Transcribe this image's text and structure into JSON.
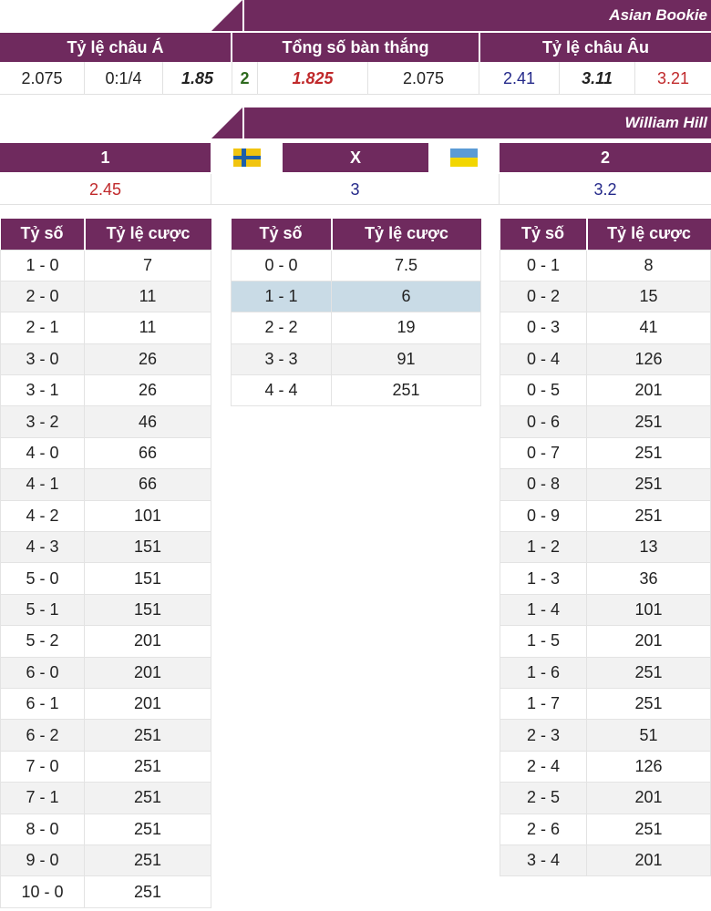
{
  "asian_bookie": {
    "name": "Asian Bookie",
    "headers": [
      "Tỷ lệ châu Á",
      "Tổng số bàn thắng",
      "Tỷ lệ châu Âu"
    ],
    "values": {
      "asia_home": "2.075",
      "asia_handicap": "0:1/4",
      "asia_away": "1.85",
      "total_line": "2",
      "total_over": "1.825",
      "total_under": "2.075",
      "eu_home": "2.41",
      "eu_draw": "3.11",
      "eu_away": "3.21"
    }
  },
  "william_hill": {
    "name": "William Hill",
    "header_home": "1",
    "header_draw": "X",
    "header_away": "2",
    "home_flag": "sweden-flag-icon",
    "away_flag": "ukraine-flag-icon",
    "home_odds": "2.45",
    "draw_odds": "3",
    "away_odds": "3.2"
  },
  "score_tables": {
    "col_score": "Tỷ số",
    "col_odds": "Tỷ lệ cược",
    "home_win": [
      [
        "1 - 0",
        "7"
      ],
      [
        "2 - 0",
        "11"
      ],
      [
        "2 - 1",
        "11"
      ],
      [
        "3 - 0",
        "26"
      ],
      [
        "3 - 1",
        "26"
      ],
      [
        "3 - 2",
        "46"
      ],
      [
        "4 - 0",
        "66"
      ],
      [
        "4 - 1",
        "66"
      ],
      [
        "4 - 2",
        "101"
      ],
      [
        "4 - 3",
        "151"
      ],
      [
        "5 - 0",
        "151"
      ],
      [
        "5 - 1",
        "151"
      ],
      [
        "5 - 2",
        "201"
      ],
      [
        "6 - 0",
        "201"
      ],
      [
        "6 - 1",
        "201"
      ],
      [
        "6 - 2",
        "251"
      ],
      [
        "7 - 0",
        "251"
      ],
      [
        "7 - 1",
        "251"
      ],
      [
        "8 - 0",
        "251"
      ],
      [
        "9 - 0",
        "251"
      ],
      [
        "10 - 0",
        "251"
      ]
    ],
    "draw": [
      [
        "0 - 0",
        "7.5"
      ],
      [
        "1 - 1",
        "6"
      ],
      [
        "2 - 2",
        "19"
      ],
      [
        "3 - 3",
        "91"
      ],
      [
        "4 - 4",
        "251"
      ]
    ],
    "draw_highlight_index": 1,
    "away_win": [
      [
        "0 - 1",
        "8"
      ],
      [
        "0 - 2",
        "15"
      ],
      [
        "0 - 3",
        "41"
      ],
      [
        "0 - 4",
        "126"
      ],
      [
        "0 - 5",
        "201"
      ],
      [
        "0 - 6",
        "251"
      ],
      [
        "0 - 7",
        "251"
      ],
      [
        "0 - 8",
        "251"
      ],
      [
        "0 - 9",
        "251"
      ],
      [
        "1 - 2",
        "13"
      ],
      [
        "1 - 3",
        "36"
      ],
      [
        "1 - 4",
        "101"
      ],
      [
        "1 - 5",
        "201"
      ],
      [
        "1 - 6",
        "251"
      ],
      [
        "1 - 7",
        "251"
      ],
      [
        "2 - 3",
        "51"
      ],
      [
        "2 - 4",
        "126"
      ],
      [
        "2 - 5",
        "201"
      ],
      [
        "2 - 6",
        "251"
      ],
      [
        "3 - 4",
        "201"
      ]
    ]
  },
  "colors": {
    "header_bg": "#6f2a5e",
    "highlight_row": "#c9dbe6",
    "odds_red": "#c0292b",
    "odds_blue": "#24298a",
    "line_green": "#2e6a1e"
  }
}
